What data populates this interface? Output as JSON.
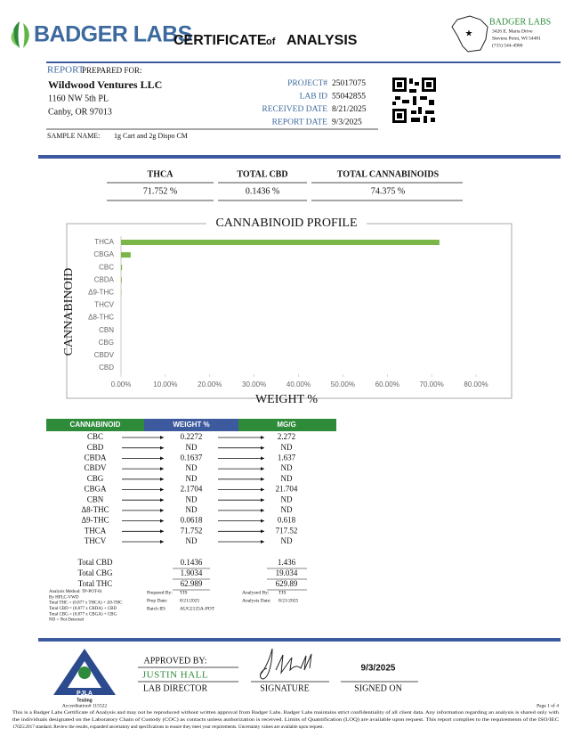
{
  "header": {
    "brand": "BADGER LABS",
    "title_main": "CERTIFICATE",
    "title_of": "of",
    "title_end": "ANALYSIS",
    "lab": {
      "name": "BADGER LABS",
      "street": "3426 E. Maria Drive",
      "city": "Stevens Point, WI 54481",
      "phone": "(715) 544-4900"
    }
  },
  "report": {
    "label": "REPORT",
    "prepared_for": "PREPARED FOR:",
    "client": "Wildwood Ventures LLC",
    "address1": "1160 NW 5th PL",
    "address2": "Canby, OR 97013",
    "fields": [
      {
        "label": "PROJECT#",
        "value": "25017075"
      },
      {
        "label": "LAB ID",
        "value": "55042855"
      },
      {
        "label": "RECEIVED DATE",
        "value": "8/21/2025"
      },
      {
        "label": "REPORT DATE",
        "value": "9/3/2025"
      }
    ],
    "sample_label": "SAMPLE NAME:",
    "sample_value": "1g Cart and 2g Dispo CM"
  },
  "summary": {
    "headers": [
      "THCA",
      "TOTAL CBD",
      "TOTAL CANNABINOIDS"
    ],
    "values": [
      "71.752 %",
      "0.1436 %",
      "74.375 %"
    ]
  },
  "chart_data": {
    "type": "hbar",
    "title": "CANNABINOID PROFILE",
    "y_label": "CANNABINOID",
    "x_label": "WEIGHT %",
    "categories": [
      "THCA",
      "CBGA",
      "CBC",
      "CBDA",
      "Δ9-THC",
      "THCV",
      "Δ8-THC",
      "CBN",
      "CBG",
      "CBDV",
      "CBD"
    ],
    "values": [
      71.752,
      2.1704,
      0.2272,
      0.1637,
      0.0618,
      0,
      0,
      0,
      0,
      0,
      0
    ],
    "color": "#7ab648",
    "xlim": [
      0,
      80
    ],
    "xticks": [
      {
        "value": 0,
        "label": "0.00%"
      },
      {
        "value": 10,
        "label": "10.00%"
      },
      {
        "value": 20,
        "label": "20.00%"
      },
      {
        "value": 30,
        "label": "30.00%"
      },
      {
        "value": 40,
        "label": "40.00%"
      },
      {
        "value": 50,
        "label": "50.00%"
      },
      {
        "value": 60,
        "label": "60.00%"
      },
      {
        "value": 70,
        "label": "70.00%"
      },
      {
        "value": 80,
        "label": "80.00%"
      }
    ]
  },
  "results": {
    "headers": [
      "CANNABINOID",
      "WEIGHT %",
      "MG/G"
    ],
    "rows": [
      [
        "CBC",
        "0.2272",
        "2.272"
      ],
      [
        "CBD",
        "ND",
        "ND"
      ],
      [
        "CBDA",
        "0.1637",
        "1.637"
      ],
      [
        "CBDV",
        "ND",
        "ND"
      ],
      [
        "CBG",
        "ND",
        "ND"
      ],
      [
        "CBGA",
        "2.1704",
        "21.704"
      ],
      [
        "CBN",
        "ND",
        "ND"
      ],
      [
        "Δ8-THC",
        "ND",
        "ND"
      ],
      [
        "Δ9-THC",
        "0.0618",
        "0.618"
      ],
      [
        "THCA",
        "71.752",
        "717.52"
      ],
      [
        "THCV",
        "ND",
        "ND"
      ]
    ],
    "totals": [
      [
        "Total CBD",
        "0.1436",
        "1.436"
      ],
      [
        "Total CBG",
        "1.9034",
        "19.034"
      ],
      [
        "Total THC",
        "62.989",
        "629.89"
      ]
    ]
  },
  "notes": {
    "method": [
      "Analysis Method: TP-POT-01",
      "By HPLC-VWD",
      "Total THC = (0.877 x THCA) + Δ9-THC",
      "Total CBD = (0.877 x CBDA) + CBD",
      "Total CBG = (0.877 x CBGA) + CBG",
      "ND = Not Detected"
    ],
    "prep": [
      {
        "label": "Prepared By:",
        "value": "TJS"
      },
      {
        "label": "Prep Date:",
        "value": "8/21/2025"
      },
      {
        "label": "Batch ID:",
        "value": "AUG2125A-POT"
      }
    ],
    "analysis": [
      {
        "label": "Analyzed By:",
        "value": "TJS"
      },
      {
        "label": "Analysis Date:",
        "value": "8/21/2025"
      }
    ]
  },
  "approval": {
    "approved_by": "APPROVED BY:",
    "name": "JUSTIN HALL",
    "role": "LAB DIRECTOR",
    "signature_label": "SIGNATURE",
    "signed_date": "9/3/2025",
    "signed_label": "SIGNED ON",
    "pjla": "PJLA",
    "pjla_sub": "Testing"
  },
  "footer": {
    "accreditation": "Accreditation# 115522",
    "page": "Page 1 of 4",
    "disclaimer": [
      "This is a Badger Labs Certificate of Analysis and may not be reproduced without written approval from Badger Labs. Badger Labs maintains strict confidentiality of all client data. Any information regarding an analysis is shared only with",
      "the individuals designated on the Laboratory Chain of Custody (COC) as contacts unless authorization is received. Limits of Quantification (LOQ) are available upon request. This report complies to the requirements of the ISO/IEC",
      "17025:2017 standard. Review the results, expanded uncertainty and specifications to ensure they meet your requirements. Uncertainty values are available upon request."
    ]
  }
}
